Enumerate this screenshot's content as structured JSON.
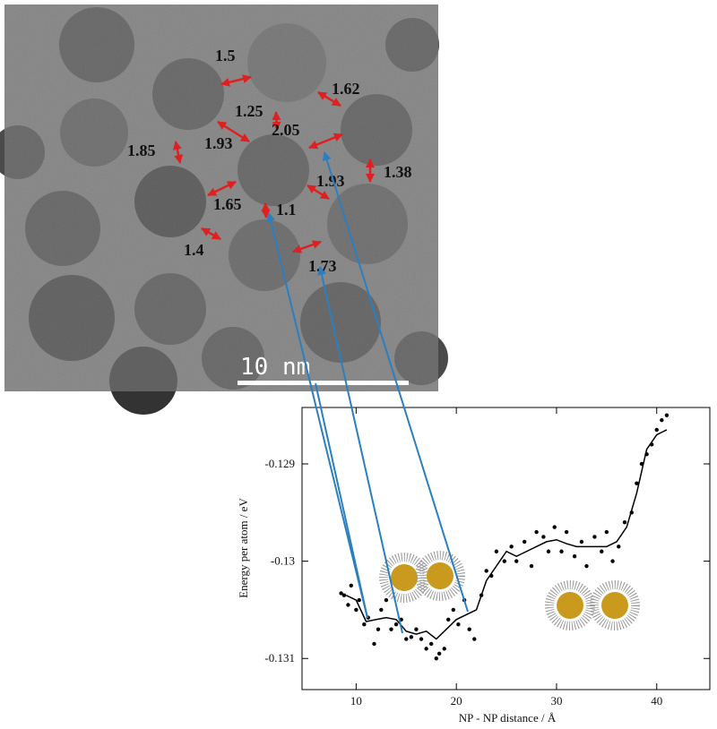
{
  "micrograph": {
    "labels": [
      "1.5",
      "1.62",
      "1.25",
      "2.05",
      "1.93",
      "1.85",
      "1.38",
      "1.93",
      "1.65",
      "1.1",
      "1.4",
      "1.73"
    ],
    "scale_bar": "10 nm"
  },
  "chart_data": {
    "type": "scatter",
    "xlabel": "NP - NP distance / Å",
    "ylabel": "Energy per atom / eV",
    "xlim": [
      4.6,
      45.3
    ],
    "ylim": [
      -0.13132,
      -0.12842
    ],
    "xticks": [
      10,
      20,
      30,
      40
    ],
    "yticks": [
      -0.131,
      -0.13,
      -0.129
    ],
    "series": [
      {
        "type": "scatter",
        "color": "#000000",
        "x": [
          8.5,
          8.8,
          9.2,
          9.5,
          10,
          10.3,
          10.8,
          11.2,
          11.8,
          12.2,
          12.5,
          13,
          13.5,
          14,
          14.5,
          15,
          15.5,
          16,
          16.5,
          17,
          17.5,
          18,
          18.3,
          18.8,
          19.2,
          19.7,
          20.2,
          20.8,
          21.3,
          21.8,
          22.5,
          23,
          23.5,
          24,
          24.8,
          25.5,
          26,
          26.8,
          27.5,
          28,
          28.7,
          29.2,
          29.8,
          30.5,
          31,
          31.8,
          32.5,
          33,
          33.8,
          34.5,
          35,
          35.6,
          36.2,
          36.8,
          37.5,
          38,
          38.5,
          39,
          39.5,
          40,
          40.5,
          41
        ],
        "values": [
          -0.13033,
          -0.13035,
          -0.13045,
          -0.13025,
          -0.1305,
          -0.1304,
          -0.13065,
          -0.13058,
          -0.13085,
          -0.1307,
          -0.1305,
          -0.1304,
          -0.1307,
          -0.13065,
          -0.1306,
          -0.1308,
          -0.13078,
          -0.1307,
          -0.1308,
          -0.1309,
          -0.13085,
          -0.131,
          -0.13095,
          -0.1309,
          -0.1306,
          -0.1305,
          -0.13065,
          -0.1304,
          -0.1307,
          -0.1308,
          -0.13035,
          -0.1301,
          -0.13015,
          -0.1299,
          -0.13,
          -0.12985,
          -0.13,
          -0.1298,
          -0.13005,
          -0.1297,
          -0.12975,
          -0.1299,
          -0.12965,
          -0.1299,
          -0.1297,
          -0.12995,
          -0.1298,
          -0.13005,
          -0.12975,
          -0.1299,
          -0.1297,
          -0.13,
          -0.12985,
          -0.1296,
          -0.1295,
          -0.1292,
          -0.129,
          -0.1289,
          -0.1288,
          -0.12865,
          -0.12855,
          -0.1285
        ]
      },
      {
        "type": "line",
        "color": "#000000",
        "x": [
          9,
          10,
          11,
          12,
          13,
          14,
          15,
          16,
          17,
          18,
          19,
          20,
          21,
          22,
          23,
          24,
          25,
          26,
          27,
          28,
          29,
          30,
          31,
          32,
          33,
          34,
          35,
          36,
          37,
          38,
          39,
          40,
          41
        ],
        "values": [
          -0.13035,
          -0.1304,
          -0.13062,
          -0.1306,
          -0.13058,
          -0.1306,
          -0.13072,
          -0.13075,
          -0.13072,
          -0.1308,
          -0.1307,
          -0.1306,
          -0.13055,
          -0.1305,
          -0.1302,
          -0.13005,
          -0.1299,
          -0.12995,
          -0.1299,
          -0.12985,
          -0.1298,
          -0.12978,
          -0.12982,
          -0.12985,
          -0.12985,
          -0.12985,
          -0.12985,
          -0.1298,
          -0.12965,
          -0.1293,
          -0.12885,
          -0.1287,
          -0.12865
        ]
      }
    ]
  }
}
